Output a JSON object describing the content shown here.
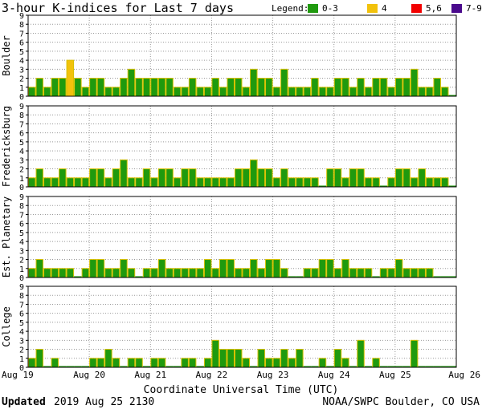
{
  "title": "3-hour K-indices for Last 7 days",
  "legend": {
    "label": "Legend:",
    "items": [
      {
        "label": "0-3",
        "color": "#1f9a0e"
      },
      {
        "label": "4",
        "color": "#f2c20c"
      },
      {
        "label": "5,6",
        "color": "#f20000"
      },
      {
        "label": "7-9",
        "color": "#4a0a8c"
      }
    ]
  },
  "bar_outline_color": "#d8c000",
  "xlabel": "Coordinate Universal Time (UTC)",
  "footer": {
    "updated_label": "Updated",
    "updated_value": "2019 Aug 25 2130",
    "source": "NOAA/SWPC Boulder, CO USA"
  },
  "chart_data": {
    "type": "bar",
    "title": "3-hour K-indices for Last 7 days",
    "xlabel": "Coordinate Universal Time (UTC)",
    "x_ticks": [
      "Aug 19",
      "Aug 20",
      "Aug 21",
      "Aug 22",
      "Aug 23",
      "Aug 24",
      "Aug 25",
      "Aug 26"
    ],
    "y_ticks": [
      "0",
      "1",
      "2",
      "3",
      "4",
      "5",
      "6",
      "7",
      "8",
      "9"
    ],
    "ylim": [
      0,
      9
    ],
    "bins": 56,
    "grid": true,
    "legend_placement": "top-right",
    "panels": [
      {
        "name": "Boulder",
        "values": [
          1,
          2,
          1,
          2,
          2,
          4,
          2,
          1,
          2,
          2,
          1,
          1,
          2,
          3,
          2,
          2,
          2,
          2,
          2,
          1,
          1,
          2,
          1,
          1,
          2,
          1,
          2,
          2,
          1,
          3,
          2,
          2,
          1,
          3,
          1,
          1,
          1,
          2,
          1,
          1,
          2,
          2,
          1,
          2,
          1,
          2,
          2,
          1,
          2,
          2,
          3,
          1,
          1,
          2,
          1,
          0
        ]
      },
      {
        "name": "Fredericksburg",
        "values": [
          1,
          2,
          1,
          1,
          2,
          1,
          1,
          1,
          2,
          2,
          1,
          2,
          3,
          1,
          1,
          2,
          1,
          2,
          2,
          1,
          2,
          2,
          1,
          1,
          1,
          1,
          1,
          2,
          2,
          3,
          2,
          2,
          1,
          2,
          1,
          1,
          1,
          1,
          0,
          2,
          2,
          1,
          2,
          2,
          1,
          1,
          0,
          1,
          2,
          2,
          1,
          2,
          1,
          1,
          1,
          0
        ]
      },
      {
        "name": "Est. Planetary",
        "values": [
          1,
          2,
          1,
          1,
          1,
          1,
          0,
          1,
          2,
          2,
          1,
          1,
          2,
          1,
          0,
          1,
          1,
          2,
          1,
          1,
          1,
          1,
          1,
          2,
          1,
          2,
          2,
          1,
          1,
          2,
          1,
          2,
          2,
          1,
          0,
          0,
          1,
          1,
          2,
          2,
          1,
          2,
          1,
          1,
          1,
          0,
          1,
          1,
          2,
          1,
          1,
          1,
          1,
          0,
          0,
          0
        ]
      },
      {
        "name": "College",
        "values": [
          1,
          2,
          0,
          1,
          0,
          0,
          0,
          0,
          1,
          1,
          2,
          1,
          0,
          1,
          1,
          0,
          1,
          1,
          0,
          0,
          1,
          1,
          0,
          1,
          3,
          2,
          2,
          2,
          1,
          0,
          2,
          1,
          1,
          2,
          1,
          2,
          0,
          0,
          1,
          0,
          2,
          1,
          0,
          3,
          0,
          1,
          0,
          0,
          0,
          0,
          3,
          0,
          0,
          0,
          0,
          0
        ]
      }
    ]
  }
}
